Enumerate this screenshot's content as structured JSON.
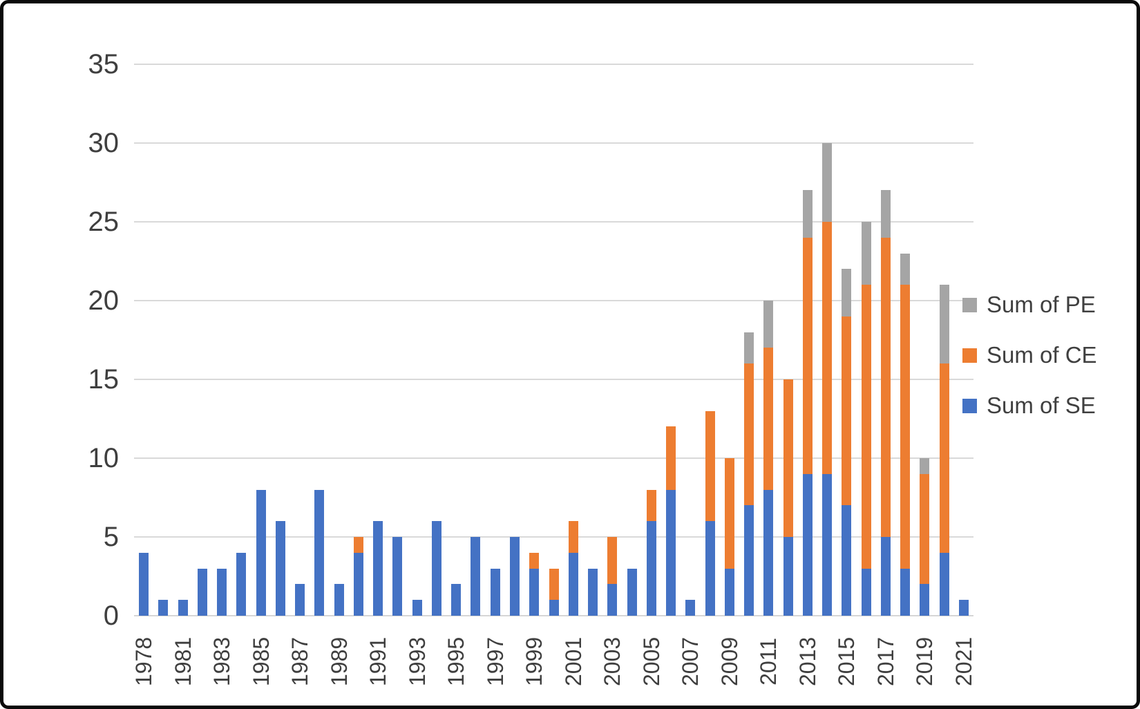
{
  "window": {
    "background": "#ffffff",
    "frame_color": "#0a0a0a"
  },
  "chart_data": {
    "type": "bar",
    "stacked": true,
    "title": "",
    "xlabel": "",
    "ylabel": "",
    "grid": true,
    "legend_position": "right",
    "legend_order": [
      "Sum of PE",
      "Sum of CE",
      "Sum of SE"
    ],
    "ylim": [
      0,
      35
    ],
    "yticks": [
      0,
      5,
      10,
      15,
      20,
      25,
      30,
      35
    ],
    "categories": [
      "1978",
      "1980",
      "1981",
      "1982",
      "1983",
      "1984",
      "1985",
      "1986",
      "1987",
      "1988",
      "1989",
      "1990",
      "1991",
      "1992",
      "1993",
      "1994",
      "1995",
      "1996",
      "1997",
      "1998",
      "1999",
      "2000",
      "2001",
      "2002",
      "2003",
      "2004",
      "2005",
      "2006",
      "2007",
      "2008",
      "2009",
      "2010",
      "2011",
      "2012",
      "2013",
      "2014",
      "2015",
      "2016",
      "2017",
      "2018",
      "2019",
      "2020",
      "2021"
    ],
    "shown_x_labels": [
      "1978",
      "1981",
      "1983",
      "1985",
      "1987",
      "1989",
      "1991",
      "1993",
      "1995",
      "1997",
      "1999",
      "2001",
      "2003",
      "2005",
      "2007",
      "2009",
      "2011",
      "2013",
      "2015",
      "2017",
      "2019",
      "2021"
    ],
    "series": [
      {
        "name": "Sum of SE",
        "color": "#4472C4",
        "values": [
          4,
          1,
          1,
          3,
          3,
          4,
          8,
          6,
          2,
          8,
          2,
          4,
          6,
          5,
          1,
          6,
          2,
          5,
          3,
          5,
          3,
          1,
          4,
          3,
          2,
          3,
          6,
          8,
          1,
          6,
          3,
          7,
          8,
          5,
          9,
          9,
          7,
          3,
          5,
          3,
          2,
          4,
          1
        ]
      },
      {
        "name": "Sum of CE",
        "color": "#ED7D31",
        "values": [
          0,
          0,
          0,
          0,
          0,
          0,
          0,
          0,
          0,
          0,
          0,
          1,
          0,
          0,
          0,
          0,
          0,
          0,
          0,
          0,
          1,
          2,
          2,
          0,
          3,
          0,
          2,
          4,
          0,
          7,
          7,
          9,
          9,
          10,
          15,
          16,
          12,
          18,
          19,
          18,
          7,
          12,
          0
        ]
      },
      {
        "name": "Sum of PE",
        "color": "#A5A5A5",
        "values": [
          0,
          0,
          0,
          0,
          0,
          0,
          0,
          0,
          0,
          0,
          0,
          0,
          0,
          0,
          0,
          0,
          0,
          0,
          0,
          0,
          0,
          0,
          0,
          0,
          0,
          0,
          0,
          0,
          0,
          0,
          0,
          2,
          3,
          0,
          3,
          5,
          3,
          4,
          3,
          2,
          1,
          5,
          0
        ]
      }
    ]
  }
}
